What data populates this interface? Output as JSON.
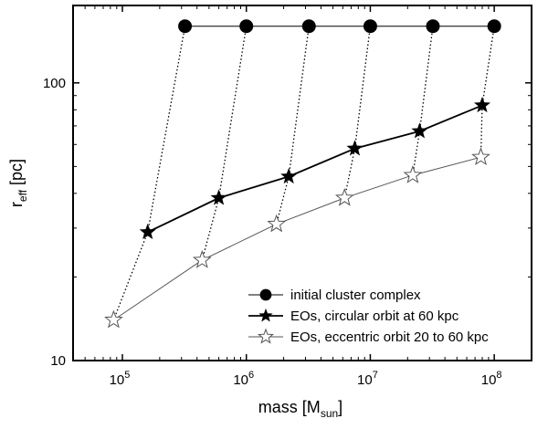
{
  "chart_data": {
    "type": "scatter",
    "xscale": "log",
    "yscale": "log",
    "xlim": [
      40000,
      200000000
    ],
    "ylim": [
      10,
      190
    ],
    "xticks": [
      {
        "value": 100000,
        "base": "10",
        "exp": "5"
      },
      {
        "value": 1000000,
        "base": "10",
        "exp": "6"
      },
      {
        "value": 10000000,
        "base": "10",
        "exp": "7"
      },
      {
        "value": 100000000,
        "base": "10",
        "exp": "8"
      }
    ],
    "yticks": [
      {
        "value": 10,
        "label": "10"
      },
      {
        "value": 100,
        "label": "100"
      }
    ],
    "xlabel": {
      "main": "mass [M",
      "sub": "sun",
      "end": "]"
    },
    "ylabel": {
      "main": "r",
      "sub": "eff",
      "end": " [pc]"
    },
    "legend_position": "bottom-right",
    "series": [
      {
        "name": "initial cluster complex",
        "marker": "filled-circle",
        "line": "solid-thin",
        "x": [
          320000,
          1000000,
          3200000,
          10000000,
          32000000,
          100000000
        ],
        "y": [
          160,
          160,
          160,
          160,
          160,
          160
        ]
      },
      {
        "name": "EOs, circular orbit at 60 kpc",
        "marker": "filled-star",
        "line": "solid-thick",
        "x": [
          160000,
          600000,
          2200000,
          7500000,
          25000000,
          80000000
        ],
        "y": [
          29,
          38.5,
          46,
          58,
          67,
          83
        ]
      },
      {
        "name": "EOs, eccentric orbit 20 to 60 kpc",
        "marker": "open-star",
        "line": "solid-thin",
        "x": [
          85000,
          440000,
          1750000,
          6200000,
          22000000,
          78000000
        ],
        "y": [
          14,
          23,
          31,
          38.5,
          46.5,
          54
        ]
      }
    ],
    "connectors": {
      "style": "dotted",
      "links": [
        {
          "x": [
            320000,
            160000,
            85000
          ],
          "y": [
            160,
            29,
            14
          ]
        },
        {
          "x": [
            1000000,
            600000,
            440000
          ],
          "y": [
            160,
            38.5,
            23
          ]
        },
        {
          "x": [
            3200000,
            2200000,
            1750000
          ],
          "y": [
            160,
            46,
            31
          ]
        },
        {
          "x": [
            10000000,
            7500000,
            6200000
          ],
          "y": [
            160,
            58,
            38.5
          ]
        },
        {
          "x": [
            32000000,
            25000000,
            22000000
          ],
          "y": [
            160,
            67,
            46.5
          ]
        },
        {
          "x": [
            100000000,
            80000000,
            78000000
          ],
          "y": [
            160,
            83,
            54
          ]
        }
      ]
    }
  }
}
